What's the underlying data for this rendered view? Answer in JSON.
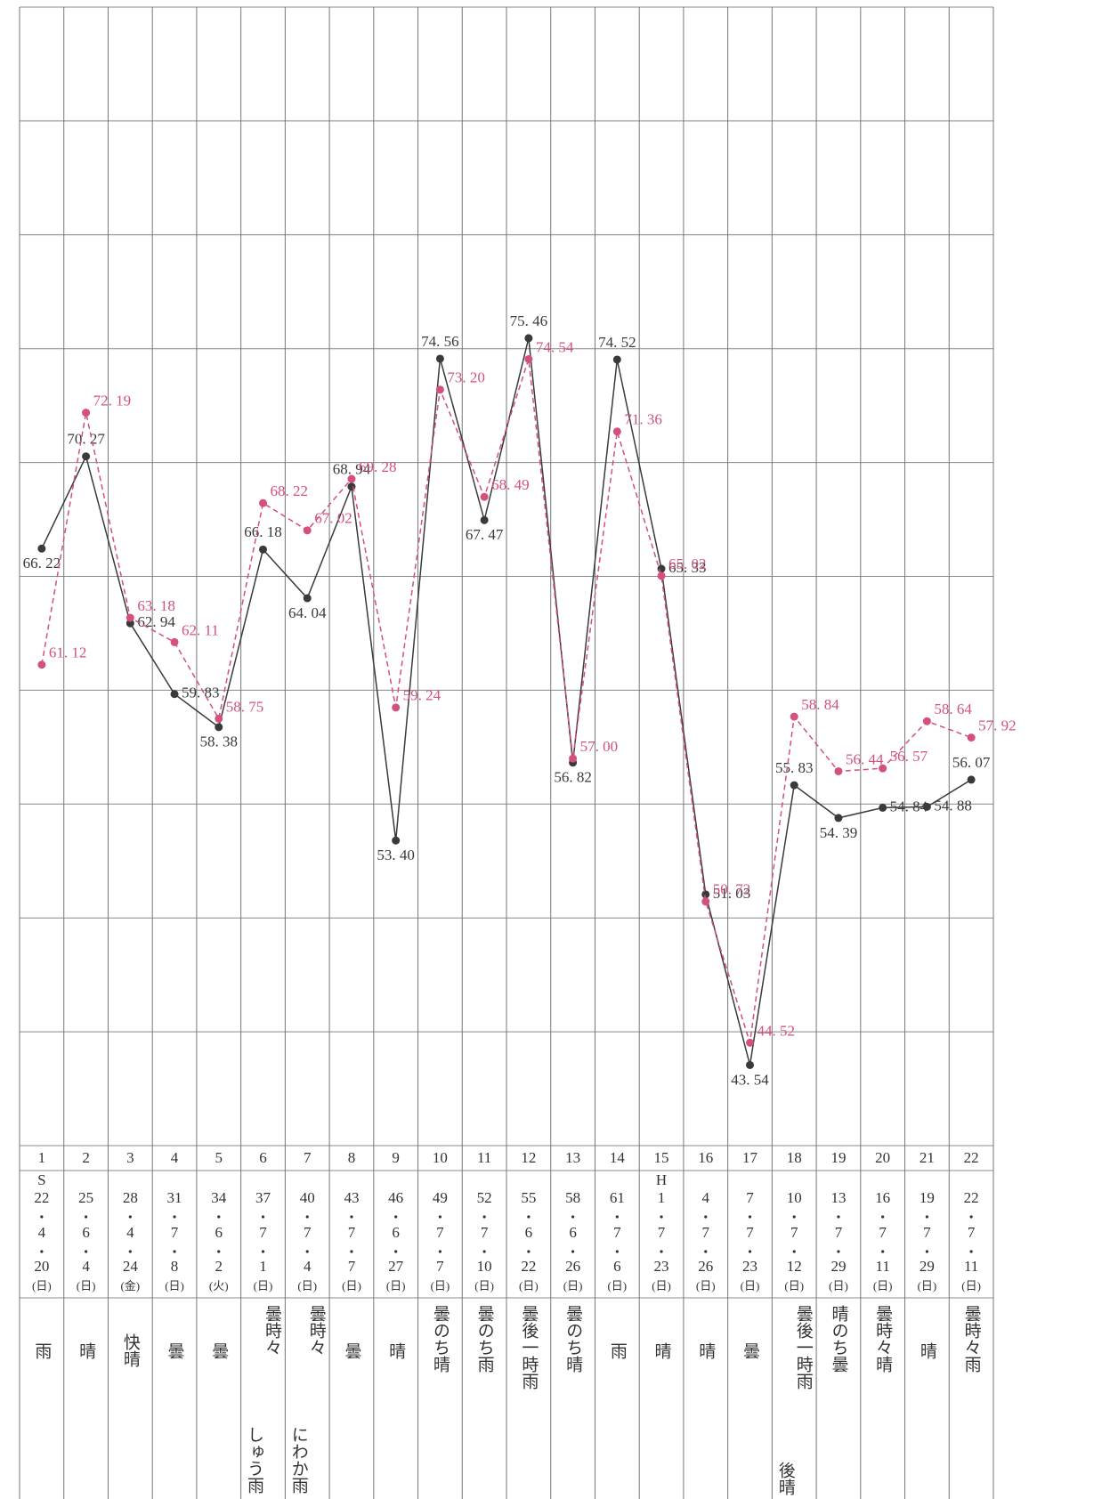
{
  "chart_data": {
    "type": "line",
    "categories": [
      "1",
      "2",
      "3",
      "4",
      "5",
      "6",
      "7",
      "8",
      "9",
      "10",
      "11",
      "12",
      "13",
      "14",
      "15",
      "16",
      "17",
      "18",
      "19",
      "20",
      "21",
      "22"
    ],
    "dates": [
      {
        "era": "S",
        "year": "22",
        "month": "4",
        "day": "20",
        "weekday": "(日)"
      },
      {
        "year": "25",
        "month": "6",
        "day": "4",
        "weekday": "(日)"
      },
      {
        "year": "28",
        "month": "4",
        "day": "24",
        "weekday": "(金)"
      },
      {
        "year": "31",
        "month": "7",
        "day": "8",
        "weekday": "(日)"
      },
      {
        "year": "34",
        "month": "6",
        "day": "2",
        "weekday": "(火)"
      },
      {
        "year": "37",
        "month": "7",
        "day": "1",
        "weekday": "(日)"
      },
      {
        "year": "40",
        "month": "7",
        "day": "4",
        "weekday": "(日)"
      },
      {
        "year": "43",
        "month": "7",
        "day": "7",
        "weekday": "(日)"
      },
      {
        "year": "46",
        "month": "6",
        "day": "27",
        "weekday": "(日)"
      },
      {
        "year": "49",
        "month": "7",
        "day": "7",
        "weekday": "(日)"
      },
      {
        "year": "52",
        "month": "7",
        "day": "10",
        "weekday": "(日)"
      },
      {
        "year": "55",
        "month": "6",
        "day": "22",
        "weekday": "(日)"
      },
      {
        "year": "58",
        "month": "6",
        "day": "26",
        "weekday": "(日)"
      },
      {
        "year": "61",
        "month": "7",
        "day": "6",
        "weekday": "(日)"
      },
      {
        "era": "H",
        "year": "1",
        "month": "7",
        "day": "23",
        "weekday": "(日)"
      },
      {
        "year": "4",
        "month": "7",
        "day": "26",
        "weekday": "(日)"
      },
      {
        "year": "7",
        "month": "7",
        "day": "23",
        "weekday": "(日)"
      },
      {
        "year": "10",
        "month": "7",
        "day": "12",
        "weekday": "(日)"
      },
      {
        "year": "13",
        "month": "7",
        "day": "29",
        "weekday": "(日)"
      },
      {
        "year": "16",
        "month": "7",
        "day": "11",
        "weekday": "(日)"
      },
      {
        "year": "19",
        "month": "7",
        "day": "29",
        "weekday": "(日)"
      },
      {
        "year": "22",
        "month": "7",
        "day": "11",
        "weekday": "(日)"
      }
    ],
    "weather": [
      [
        "雨"
      ],
      [
        "晴"
      ],
      [
        "快晴"
      ],
      [
        "曇"
      ],
      [
        "曇"
      ],
      [
        "曇時々",
        "しゅう雨"
      ],
      [
        "曇時々",
        "にわか雨"
      ],
      [
        "曇"
      ],
      [
        "晴"
      ],
      [
        "曇のち晴"
      ],
      [
        "曇のち雨"
      ],
      [
        "曇後一時雨"
      ],
      [
        "曇のち晴"
      ],
      [
        "雨"
      ],
      [
        "晴"
      ],
      [
        "晴"
      ],
      [
        "曇"
      ],
      [
        "曇後一時雨",
        "後晴"
      ],
      [
        "晴のち曇"
      ],
      [
        "曇時々晴"
      ],
      [
        "晴"
      ],
      [
        "曇時々雨"
      ]
    ],
    "series": [
      {
        "color": "#3a3a3a",
        "dash": false,
        "values": [
          66.22,
          70.27,
          62.94,
          59.83,
          58.38,
          66.18,
          64.04,
          68.94,
          53.4,
          74.56,
          67.47,
          75.46,
          56.82,
          74.52,
          65.33,
          51.03,
          43.54,
          55.83,
          54.39,
          54.84,
          54.88,
          56.07
        ],
        "value_labels": [
          "66. 22",
          "70. 27",
          "62. 94",
          "59. 83",
          "58. 38",
          "66. 18",
          "64. 04",
          "68. 94",
          "53. 40",
          "74. 56",
          "67. 47",
          "75. 46",
          "56. 82",
          "74. 52",
          "65. 33",
          "51. 03",
          "43. 54",
          "55. 83",
          "54. 39",
          "54. 84",
          "54. 88",
          "56. 07"
        ]
      },
      {
        "color": "#d3507f",
        "dash": true,
        "values": [
          61.12,
          72.19,
          63.18,
          62.11,
          58.75,
          68.22,
          67.02,
          69.28,
          59.24,
          73.2,
          68.49,
          74.54,
          57.0,
          71.36,
          65.02,
          50.72,
          44.52,
          58.84,
          56.44,
          56.57,
          58.64,
          57.92
        ],
        "value_labels": [
          "61. 12",
          "72. 19",
          "63. 18",
          "62. 11",
          "58. 75",
          "68. 22",
          "67. 02",
          "69. 28",
          "59. 24",
          "73. 20",
          "68. 49",
          "74. 54",
          "57. 00",
          "71. 36",
          "65. 02",
          "50. 72",
          "44. 52",
          "58. 84",
          "56. 44",
          "56. 57",
          "58. 64",
          "57. 92"
        ]
      }
    ],
    "ylim": [
      40,
      90
    ],
    "yticks": [
      40,
      45,
      50,
      55,
      60,
      65,
      70,
      75,
      80,
      85,
      90
    ],
    "grid": true
  }
}
